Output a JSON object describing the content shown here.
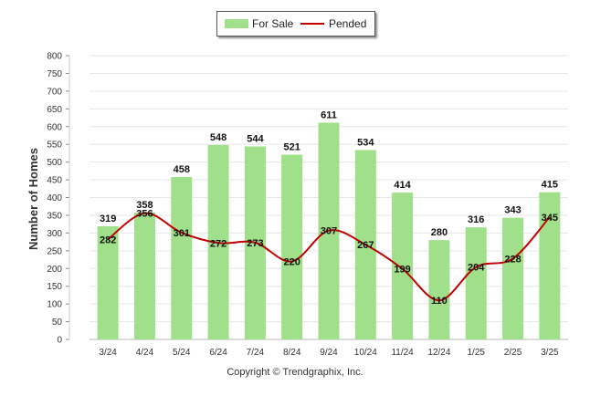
{
  "legend": {
    "bar_label": "For Sale",
    "line_label": "Pended"
  },
  "footer": {
    "copyright": "Copyright © Trendgraphix, Inc."
  },
  "colors": {
    "bar": "#a1e08a",
    "line": "#c00000",
    "grid": "#e6e6e6"
  },
  "chart_data": {
    "type": "bar",
    "categories": [
      "3/24",
      "4/24",
      "5/24",
      "6/24",
      "7/24",
      "8/24",
      "9/24",
      "10/24",
      "11/24",
      "12/24",
      "1/25",
      "2/25",
      "3/25"
    ],
    "series": [
      {
        "name": "For Sale",
        "type": "bar",
        "values": [
          319,
          358,
          458,
          548,
          544,
          521,
          611,
          534,
          414,
          280,
          316,
          343,
          415
        ]
      },
      {
        "name": "Pended",
        "type": "line",
        "values": [
          282,
          356,
          301,
          272,
          273,
          220,
          307,
          267,
          199,
          110,
          204,
          228,
          345
        ]
      }
    ],
    "ylabel": "Number of Homes",
    "ylim": [
      0,
      800
    ],
    "yticks": [
      0,
      50,
      100,
      150,
      200,
      250,
      300,
      350,
      400,
      450,
      500,
      550,
      600,
      650,
      700,
      750,
      800
    ],
    "grid": true,
    "legend_position": "top-center"
  }
}
